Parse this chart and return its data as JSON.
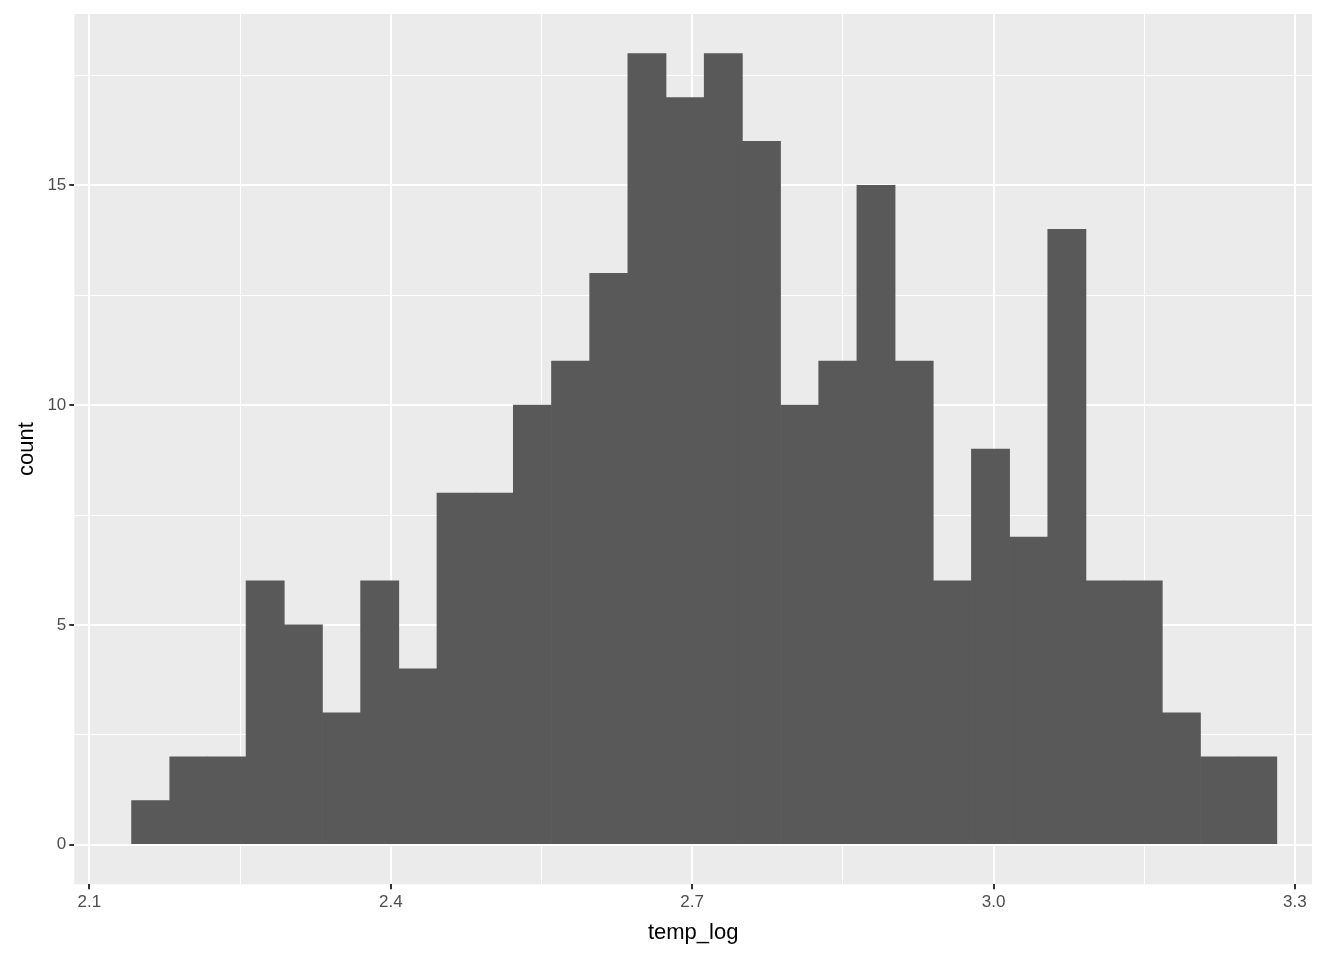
{
  "chart_data": {
    "type": "histogram",
    "xlabel": "temp_log",
    "ylabel": "count",
    "color": "#595959",
    "bins": [
      2.142,
      2.18,
      2.218,
      2.256,
      2.294,
      2.332,
      2.37,
      2.408,
      2.446,
      2.484,
      2.522,
      2.56,
      2.598,
      2.636,
      2.674,
      2.712,
      2.75,
      2.788,
      2.826,
      2.864,
      2.902,
      2.94,
      2.978,
      3.016,
      3.054,
      3.092,
      3.13,
      3.168,
      3.206,
      3.244,
      3.282
    ],
    "values": [
      1,
      2,
      2,
      6,
      5,
      3,
      6,
      4,
      8,
      8,
      10,
      11,
      13,
      18,
      17,
      18,
      16,
      10,
      11,
      15,
      11,
      6,
      9,
      7,
      14,
      6,
      6,
      3,
      2,
      2
    ],
    "xlim": [
      2.085,
      3.317
    ],
    "ylim": [
      -0.9,
      18.9
    ],
    "xticks": [
      {
        "value": 2.1,
        "label": "2.1"
      },
      {
        "value": 2.25,
        "label": null
      },
      {
        "value": 2.4,
        "label": "2.4"
      },
      {
        "value": 2.55,
        "label": null
      },
      {
        "value": 2.7,
        "label": "2.7"
      },
      {
        "value": 2.85,
        "label": null
      },
      {
        "value": 3.0,
        "label": "3.0"
      },
      {
        "value": 3.15,
        "label": null
      },
      {
        "value": 3.3,
        "label": "3.3"
      }
    ],
    "yticks": [
      0,
      {
        "value": 2.5,
        "label": null
      },
      5,
      {
        "value": 7.5,
        "label": null
      },
      10,
      {
        "value": 12.5,
        "label": null
      },
      15,
      {
        "value": 17.5,
        "label": null
      }
    ],
    "grid": true,
    "legend": false
  }
}
